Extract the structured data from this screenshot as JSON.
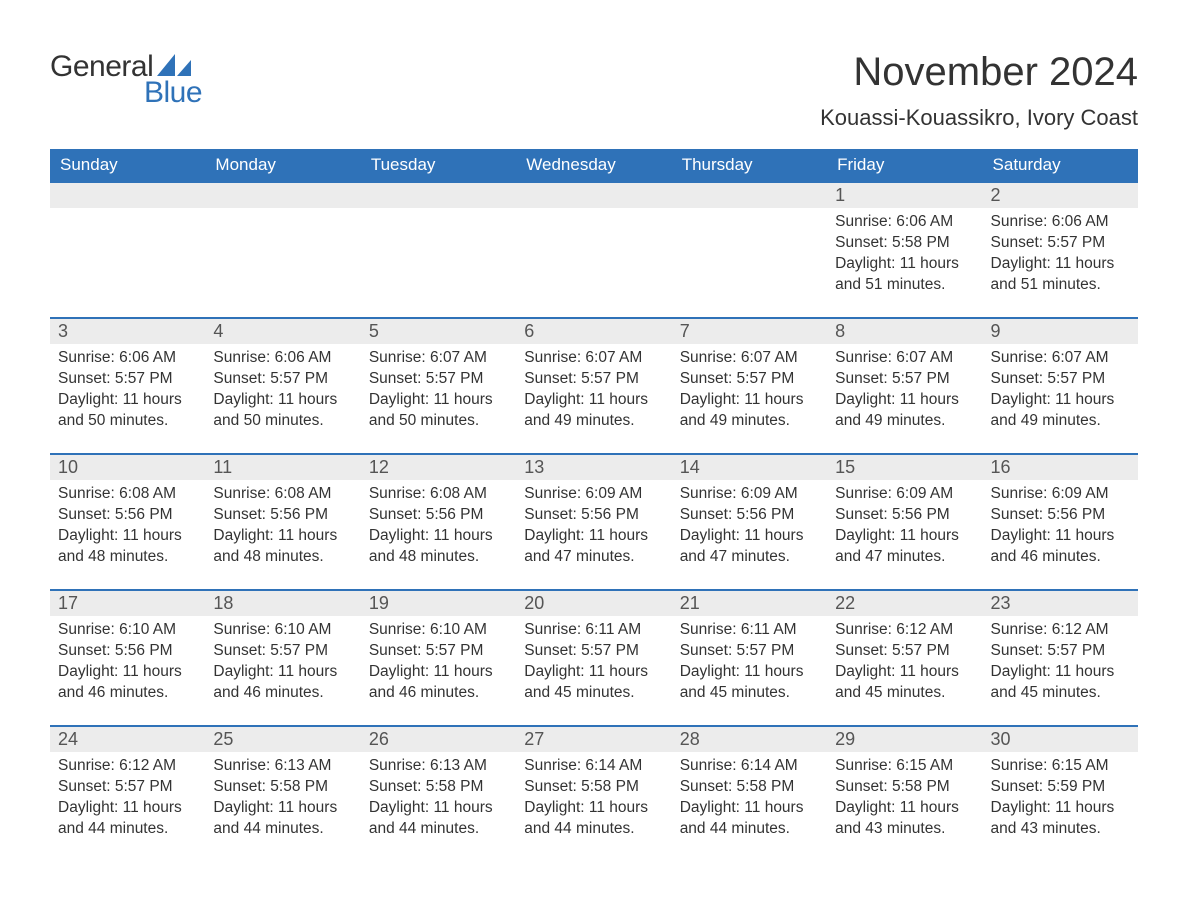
{
  "logo": {
    "part1": "General",
    "part2": "Blue",
    "brand_color": "#2f72b8"
  },
  "title": "November 2024",
  "location": "Kouassi-Kouassikro, Ivory Coast",
  "colors": {
    "header_bg": "#2f72b8",
    "header_text": "#ffffff",
    "daynum_bg": "#ececec",
    "daynum_border": "#2f72b8",
    "text": "#333333",
    "background": "#ffffff"
  },
  "day_labels": [
    "Sunday",
    "Monday",
    "Tuesday",
    "Wednesday",
    "Thursday",
    "Friday",
    "Saturday"
  ],
  "weeks": [
    [
      null,
      null,
      null,
      null,
      null,
      {
        "n": "1",
        "sunrise": "6:06 AM",
        "sunset": "5:58 PM",
        "daylight": "11 hours and 51 minutes."
      },
      {
        "n": "2",
        "sunrise": "6:06 AM",
        "sunset": "5:57 PM",
        "daylight": "11 hours and 51 minutes."
      }
    ],
    [
      {
        "n": "3",
        "sunrise": "6:06 AM",
        "sunset": "5:57 PM",
        "daylight": "11 hours and 50 minutes."
      },
      {
        "n": "4",
        "sunrise": "6:06 AM",
        "sunset": "5:57 PM",
        "daylight": "11 hours and 50 minutes."
      },
      {
        "n": "5",
        "sunrise": "6:07 AM",
        "sunset": "5:57 PM",
        "daylight": "11 hours and 50 minutes."
      },
      {
        "n": "6",
        "sunrise": "6:07 AM",
        "sunset": "5:57 PM",
        "daylight": "11 hours and 49 minutes."
      },
      {
        "n": "7",
        "sunrise": "6:07 AM",
        "sunset": "5:57 PM",
        "daylight": "11 hours and 49 minutes."
      },
      {
        "n": "8",
        "sunrise": "6:07 AM",
        "sunset": "5:57 PM",
        "daylight": "11 hours and 49 minutes."
      },
      {
        "n": "9",
        "sunrise": "6:07 AM",
        "sunset": "5:57 PM",
        "daylight": "11 hours and 49 minutes."
      }
    ],
    [
      {
        "n": "10",
        "sunrise": "6:08 AM",
        "sunset": "5:56 PM",
        "daylight": "11 hours and 48 minutes."
      },
      {
        "n": "11",
        "sunrise": "6:08 AM",
        "sunset": "5:56 PM",
        "daylight": "11 hours and 48 minutes."
      },
      {
        "n": "12",
        "sunrise": "6:08 AM",
        "sunset": "5:56 PM",
        "daylight": "11 hours and 48 minutes."
      },
      {
        "n": "13",
        "sunrise": "6:09 AM",
        "sunset": "5:56 PM",
        "daylight": "11 hours and 47 minutes."
      },
      {
        "n": "14",
        "sunrise": "6:09 AM",
        "sunset": "5:56 PM",
        "daylight": "11 hours and 47 minutes."
      },
      {
        "n": "15",
        "sunrise": "6:09 AM",
        "sunset": "5:56 PM",
        "daylight": "11 hours and 47 minutes."
      },
      {
        "n": "16",
        "sunrise": "6:09 AM",
        "sunset": "5:56 PM",
        "daylight": "11 hours and 46 minutes."
      }
    ],
    [
      {
        "n": "17",
        "sunrise": "6:10 AM",
        "sunset": "5:56 PM",
        "daylight": "11 hours and 46 minutes."
      },
      {
        "n": "18",
        "sunrise": "6:10 AM",
        "sunset": "5:57 PM",
        "daylight": "11 hours and 46 minutes."
      },
      {
        "n": "19",
        "sunrise": "6:10 AM",
        "sunset": "5:57 PM",
        "daylight": "11 hours and 46 minutes."
      },
      {
        "n": "20",
        "sunrise": "6:11 AM",
        "sunset": "5:57 PM",
        "daylight": "11 hours and 45 minutes."
      },
      {
        "n": "21",
        "sunrise": "6:11 AM",
        "sunset": "5:57 PM",
        "daylight": "11 hours and 45 minutes."
      },
      {
        "n": "22",
        "sunrise": "6:12 AM",
        "sunset": "5:57 PM",
        "daylight": "11 hours and 45 minutes."
      },
      {
        "n": "23",
        "sunrise": "6:12 AM",
        "sunset": "5:57 PM",
        "daylight": "11 hours and 45 minutes."
      }
    ],
    [
      {
        "n": "24",
        "sunrise": "6:12 AM",
        "sunset": "5:57 PM",
        "daylight": "11 hours and 44 minutes."
      },
      {
        "n": "25",
        "sunrise": "6:13 AM",
        "sunset": "5:58 PM",
        "daylight": "11 hours and 44 minutes."
      },
      {
        "n": "26",
        "sunrise": "6:13 AM",
        "sunset": "5:58 PM",
        "daylight": "11 hours and 44 minutes."
      },
      {
        "n": "27",
        "sunrise": "6:14 AM",
        "sunset": "5:58 PM",
        "daylight": "11 hours and 44 minutes."
      },
      {
        "n": "28",
        "sunrise": "6:14 AM",
        "sunset": "5:58 PM",
        "daylight": "11 hours and 44 minutes."
      },
      {
        "n": "29",
        "sunrise": "6:15 AM",
        "sunset": "5:58 PM",
        "daylight": "11 hours and 43 minutes."
      },
      {
        "n": "30",
        "sunrise": "6:15 AM",
        "sunset": "5:59 PM",
        "daylight": "11 hours and 43 minutes."
      }
    ]
  ],
  "labels": {
    "sunrise": "Sunrise:",
    "sunset": "Sunset:",
    "daylight": "Daylight:"
  }
}
